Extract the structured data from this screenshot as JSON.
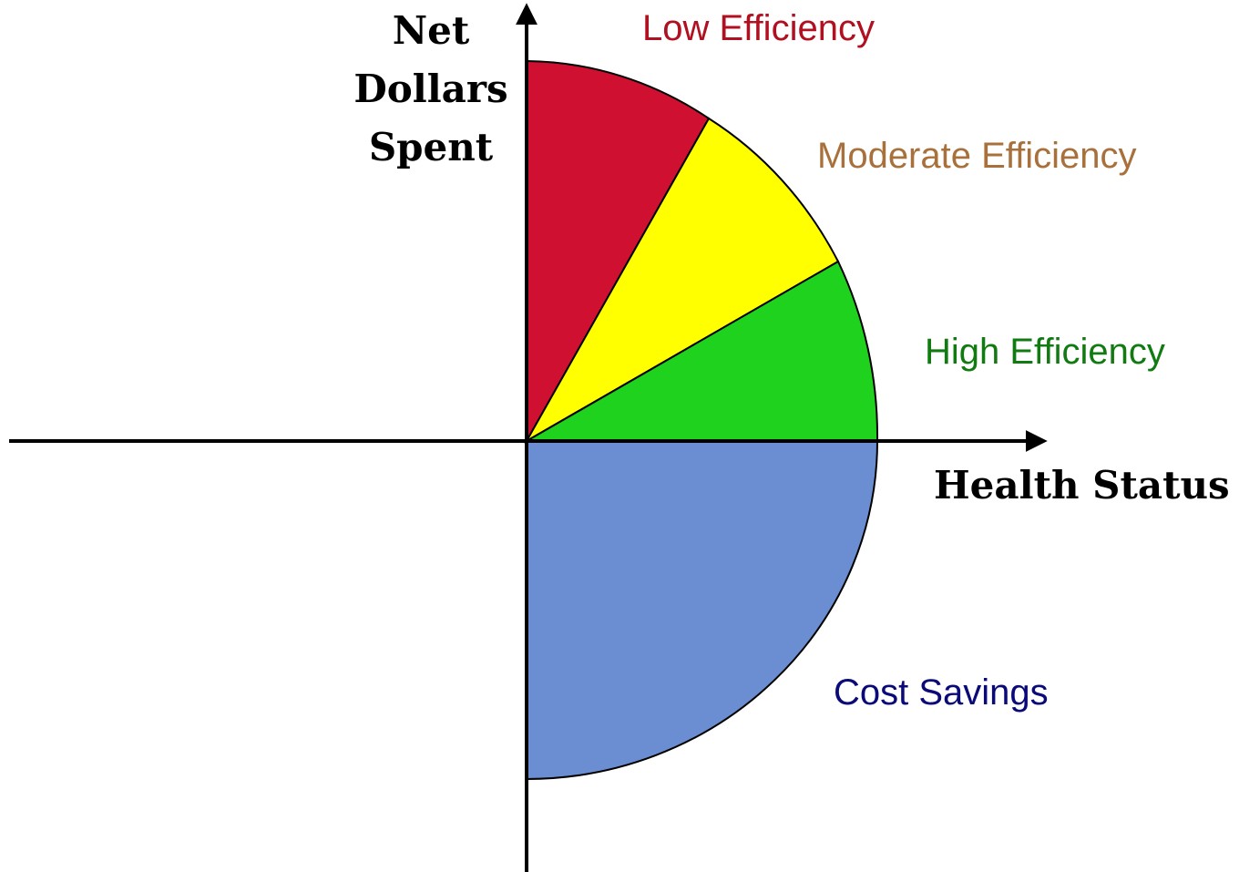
{
  "y_axis_label": [
    "Net",
    "Dollars",
    "Spent"
  ],
  "x_axis_label": "Health Status",
  "regions": [
    {
      "label": "Low Efficiency",
      "color": "#d01030"
    },
    {
      "label": "Moderate Efficiency",
      "color": "#ffff00"
    },
    {
      "label": "High Efficiency",
      "color": "#1ed21e"
    },
    {
      "label": "Cost Savings",
      "color": "#6b8dd1"
    }
  ]
}
